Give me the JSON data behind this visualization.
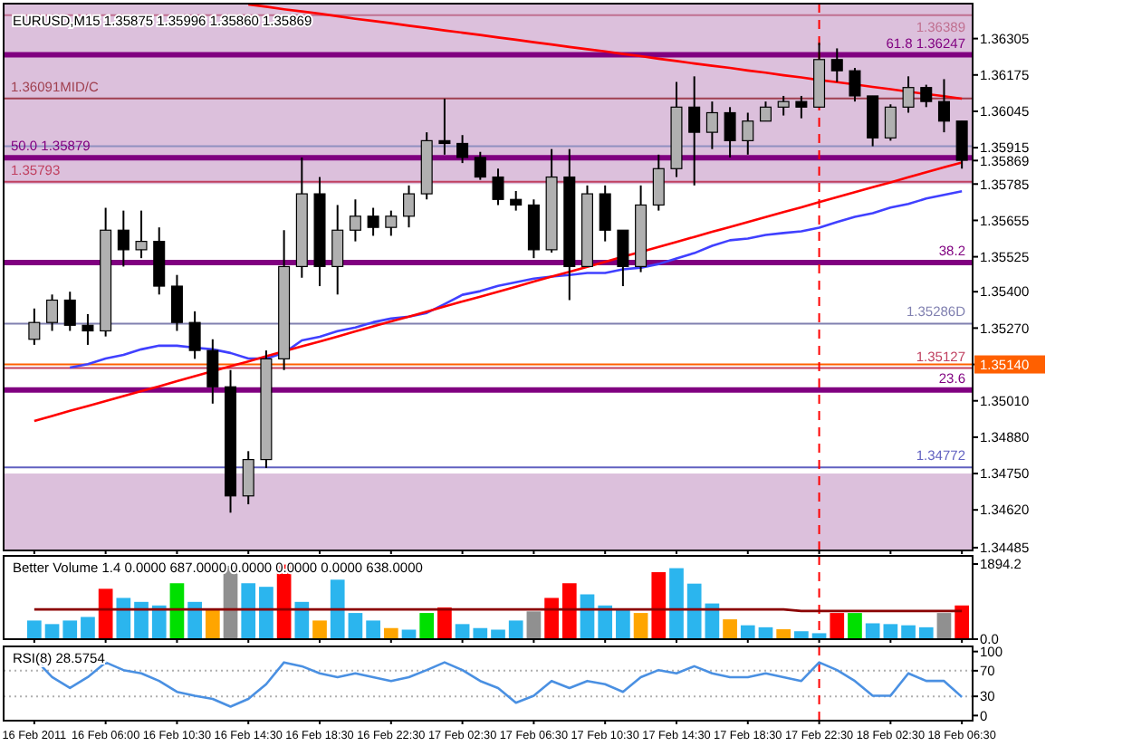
{
  "chart_data": [
    {
      "type": "candlestick",
      "title": "EURUSD,M15  1.35875 1.35996 1.35860 1.35869",
      "categories": [
        "16 Feb 2011",
        null,
        null,
        null,
        "16 Feb 06:00",
        null,
        null,
        null,
        "16 Feb 10:30",
        null,
        null,
        null,
        "16 Feb 14:30",
        null,
        null,
        null,
        "16 Feb 18:30",
        null,
        null,
        null,
        "16 Feb 22:30",
        null,
        null,
        null,
        "17 Feb 02:30",
        null,
        null,
        null,
        "17 Feb 06:30",
        null,
        null,
        null,
        "17 Feb 10:30",
        null,
        null,
        null,
        "17 Feb 14:30",
        null,
        null,
        null,
        "17 Feb 18:30",
        null,
        null,
        null,
        "17 Feb 22:30",
        null,
        null,
        null,
        "18 Feb 02:30",
        null,
        null,
        null,
        "18 Feb 06:30"
      ],
      "ohlc": [
        [
          1.3523,
          1.3534,
          1.3521,
          1.3529
        ],
        [
          1.3529,
          1.3539,
          1.3526,
          1.3537
        ],
        [
          1.3537,
          1.354,
          1.3526,
          1.3528
        ],
        [
          1.3528,
          1.3532,
          1.3521,
          1.3526
        ],
        [
          1.3526,
          1.357,
          1.3524,
          1.3562
        ],
        [
          1.3562,
          1.3569,
          1.3549,
          1.3555
        ],
        [
          1.3555,
          1.3569,
          1.3552,
          1.3558
        ],
        [
          1.3558,
          1.3563,
          1.3539,
          1.3542
        ],
        [
          1.3542,
          1.3546,
          1.3526,
          1.3529
        ],
        [
          1.3529,
          1.3533,
          1.3516,
          1.3519
        ],
        [
          1.3519,
          1.3523,
          1.35,
          1.3506
        ],
        [
          1.3506,
          1.3512,
          1.3461,
          1.3467
        ],
        [
          1.3467,
          1.3483,
          1.3464,
          1.348
        ],
        [
          1.348,
          1.3519,
          1.3477,
          1.3516
        ],
        [
          1.3516,
          1.3562,
          1.3512,
          1.3549
        ],
        [
          1.3549,
          1.3588,
          1.3545,
          1.3575
        ],
        [
          1.3575,
          1.3581,
          1.3542,
          1.3549
        ],
        [
          1.3549,
          1.3571,
          1.3539,
          1.3562
        ],
        [
          1.3562,
          1.3573,
          1.3558,
          1.3567
        ],
        [
          1.3567,
          1.357,
          1.356,
          1.3563
        ],
        [
          1.3563,
          1.3569,
          1.356,
          1.3567
        ],
        [
          1.3567,
          1.3578,
          1.3563,
          1.3575
        ],
        [
          1.3575,
          1.3597,
          1.3573,
          1.3594
        ],
        [
          1.3594,
          1.3609,
          1.3589,
          1.3593
        ],
        [
          1.3593,
          1.3596,
          1.3586,
          1.3588
        ],
        [
          1.3588,
          1.359,
          1.358,
          1.3581
        ],
        [
          1.3581,
          1.3584,
          1.3571,
          1.3573
        ],
        [
          1.3573,
          1.3576,
          1.3569,
          1.3571
        ],
        [
          1.3571,
          1.3573,
          1.3552,
          1.3555
        ],
        [
          1.3555,
          1.3591,
          1.3554,
          1.3581
        ],
        [
          1.3581,
          1.3591,
          1.3537,
          1.3549
        ],
        [
          1.3549,
          1.3578,
          1.3549,
          1.3575
        ],
        [
          1.3575,
          1.3578,
          1.3558,
          1.3562
        ],
        [
          1.3562,
          1.3562,
          1.3542,
          1.3549
        ],
        [
          1.3549,
          1.3578,
          1.3547,
          1.3571
        ],
        [
          1.3571,
          1.3589,
          1.3569,
          1.3584
        ],
        [
          1.3584,
          1.3615,
          1.3581,
          1.3606
        ],
        [
          1.3606,
          1.3617,
          1.3578,
          1.3597
        ],
        [
          1.3597,
          1.3608,
          1.3591,
          1.3604
        ],
        [
          1.3604,
          1.3606,
          1.3588,
          1.3594
        ],
        [
          1.3594,
          1.3604,
          1.3589,
          1.3601
        ],
        [
          1.3601,
          1.3608,
          1.3601,
          1.3606
        ],
        [
          1.3606,
          1.361,
          1.3603,
          1.3608
        ],
        [
          1.3608,
          1.361,
          1.3602,
          1.3606
        ],
        [
          1.3606,
          1.3629,
          1.3606,
          1.3623
        ],
        [
          1.3623,
          1.3627,
          1.3615,
          1.3619
        ],
        [
          1.3619,
          1.362,
          1.3608,
          1.361
        ],
        [
          1.361,
          1.361,
          1.3592,
          1.3595
        ],
        [
          1.3595,
          1.3607,
          1.3594,
          1.3606
        ],
        [
          1.3606,
          1.3617,
          1.3604,
          1.3613
        ],
        [
          1.3613,
          1.3614,
          1.3606,
          1.3608
        ],
        [
          1.3608,
          1.3616,
          1.3597,
          1.3601
        ],
        [
          1.3601,
          1.3601,
          1.3584,
          1.3587
        ]
      ],
      "series": [
        {
          "type": "line",
          "color": "#4040ff",
          "values": [
            null,
            null,
            1.35129,
            1.35141,
            1.35161,
            1.35174,
            1.35194,
            1.35207,
            1.35207,
            1.352,
            1.35194,
            1.35181,
            1.35161,
            1.35161,
            1.35181,
            1.35226,
            1.35239,
            1.35259,
            1.35272,
            1.35291,
            1.35304,
            1.35311,
            1.35324,
            1.35356,
            1.35389,
            1.35402,
            1.35421,
            1.35434,
            1.35447,
            1.35454,
            1.3546,
            1.35467,
            1.35467,
            1.3548,
            1.35486,
            1.35499,
            1.35519,
            1.35538,
            1.35564,
            1.35584,
            1.3559,
            1.35603,
            1.3561,
            1.35616,
            1.35629,
            1.35649,
            1.35668,
            1.35681,
            1.35701,
            1.35714,
            1.35733,
            1.35746,
            1.35759
          ]
        },
        {
          "type": "line",
          "color": "#ff0000",
          "values": [
            1.34938,
            1.34956,
            1.34974,
            1.34991,
            1.35009,
            1.35027,
            1.35045,
            1.35062,
            1.3508,
            1.35098,
            1.35116,
            1.35134,
            1.35151,
            1.35169,
            1.35187,
            1.35205,
            1.35222,
            1.3524,
            1.35258,
            1.35276,
            1.35294,
            1.35311,
            1.35329,
            1.35347,
            1.35365,
            1.35382,
            1.354,
            1.35418,
            1.35436,
            1.35454,
            1.35471,
            1.35489,
            1.35507,
            1.35525,
            1.35542,
            1.3556,
            1.35578,
            1.35596,
            1.35614,
            1.35631,
            1.35649,
            1.35667,
            1.35685,
            1.35702,
            1.3572,
            1.35738,
            1.35756,
            1.35774,
            1.35791,
            1.35809,
            1.35827,
            1.35845,
            1.35862
          ]
        },
        {
          "type": "line",
          "color": "#ff0000",
          "values": [
            null,
            null,
            null,
            null,
            null,
            null,
            null,
            null,
            null,
            null,
            null,
            null,
            1.36427,
            1.36419,
            1.3641,
            1.36402,
            1.36394,
            1.36385,
            1.36376,
            1.36368,
            1.3636,
            1.36351,
            1.36343,
            1.36334,
            1.36326,
            1.36318,
            1.36309,
            1.36301,
            1.36292,
            1.36284,
            1.36275,
            1.36267,
            1.36259,
            1.3625,
            1.36242,
            1.36233,
            1.36225,
            1.36216,
            1.36208,
            1.362,
            1.36191,
            1.36183,
            1.36174,
            1.36166,
            1.36157,
            1.36149,
            1.36141,
            1.36132,
            1.36124,
            1.36115,
            1.36107,
            1.36099,
            1.3609
          ]
        }
      ],
      "ylim": [
        1.34475,
        1.3643
      ],
      "yticks": [
        1.36305,
        1.36175,
        1.36045,
        1.35915,
        1.35869,
        1.35785,
        1.35655,
        1.35525,
        {
          "value": 1.354,
          "label": "1.35400"
        },
        {
          "value": 1.3527,
          "label": "1.35270"
        },
        {
          "value": 1.3514,
          "label": "1.35140"
        },
        {
          "value": 1.3501,
          "label": "1.35010"
        },
        {
          "value": 1.3488,
          "label": "1.34880"
        },
        {
          "value": 1.3475,
          "label": "1.34750"
        },
        {
          "value": 1.3462,
          "label": "1.34620"
        },
        1.34485
      ],
      "bands": [
        {
          "axis": "y",
          "from": 1.35785,
          "to": 1.3643,
          "color": "#dcc0dc"
        },
        {
          "axis": "y",
          "from": 1.34475,
          "to": 1.3475,
          "color": "#dcc0dc"
        }
      ],
      "ref_lines": [
        {
          "axis": "y",
          "value": 1.36389,
          "label": "1.36389",
          "color": "#c07090"
        },
        {
          "axis": "y",
          "value": 1.36247,
          "label": "61.8 1.36247",
          "color": "#800080"
        },
        {
          "axis": "y",
          "value": 1.36091,
          "label": "1.36091MID/C",
          "color": "#a04050"
        },
        {
          "axis": "y",
          "value": 1.3592,
          "color": "#9090c0"
        },
        {
          "axis": "y",
          "value": 1.35879,
          "label": "50.0 1.35879",
          "color": "#800080"
        },
        {
          "axis": "y",
          "value": 1.35793,
          "label": "1.35793",
          "color": "#c04060"
        },
        {
          "axis": "y",
          "value": 1.35504,
          "color": "#800080"
        },
        {
          "axis": "y",
          "value": 1.35286,
          "label": "1.35286D",
          "color": "#8080b0"
        },
        {
          "axis": "y",
          "value": 1.3514,
          "color": "#ff6000"
        },
        {
          "axis": "y",
          "value": 1.35127,
          "label": "1.35127",
          "color": "#c04060"
        },
        {
          "axis": "y",
          "value": 1.35049,
          "color": "#800080"
        },
        {
          "axis": "y",
          "value": 1.34772,
          "label": "1.34772",
          "color": "#6060c0"
        },
        {
          "axis": "x",
          "value": "17 Feb 22:30",
          "color": "#ff0000",
          "line_style": "dashed"
        }
      ],
      "annotations": [
        {
          "text": "38.2",
          "y": 1.35504
        },
        {
          "text": "23.6",
          "y": 1.35049
        }
      ],
      "tick_labels": "y"
    },
    {
      "type": "bar",
      "title": "Better Volume 1.4 0.0000 687.0000 0.0000 0.0000 0.0000 638.0000",
      "categories": [
        "16 Feb 2011",
        null,
        null,
        null,
        "16 Feb 06:00",
        null,
        null,
        null,
        "16 Feb 10:30",
        null,
        null,
        null,
        "16 Feb 14:30",
        null,
        null,
        null,
        "16 Feb 18:30",
        null,
        null,
        null,
        "16 Feb 22:30",
        null,
        null,
        null,
        "17 Feb 02:30",
        null,
        null,
        null,
        "17 Feb 06:30",
        null,
        null,
        null,
        "17 Feb 10:30",
        null,
        null,
        null,
        "17 Feb 14:30",
        null,
        null,
        null,
        "17 Feb 18:30",
        null,
        null,
        null,
        "17 Feb 22:30",
        null,
        null,
        null,
        "18 Feb 02:30",
        null,
        null,
        null,
        "18 Feb 06:30"
      ],
      "series": [
        {
          "type": "bar",
          "values": [
            470,
            380,
            470,
            560,
            1270,
            1040,
            940,
            850,
            1410,
            940,
            750,
            1850,
            1410,
            1320,
            1880,
            940,
            470,
            1500,
            660,
            470,
            280,
            240,
            660,
            800,
            380,
            280,
            240,
            470,
            700,
            1040,
            1410,
            1130,
            850,
            750,
            660,
            1690,
            1790,
            1400,
            900,
            500,
            350,
            300,
            250,
            200,
            150,
            660,
            660,
            400,
            380,
            350,
            300,
            660,
            850
          ],
          "colors": [
            "#2bb5ee",
            "#2bb5ee",
            "#2bb5ee",
            "#2bb5ee",
            "#ff0000",
            "#2bb5ee",
            "#2bb5ee",
            "#2bb5ee",
            "#00e000",
            "#2bb5ee",
            "#ffa500",
            "#909090",
            "#2bb5ee",
            "#2bb5ee",
            "#ff0000",
            "#2bb5ee",
            "#ffa500",
            "#2bb5ee",
            "#2bb5ee",
            "#2bb5ee",
            "#ffa500",
            "#2bb5ee",
            "#00e000",
            "#ff0000",
            "#2bb5ee",
            "#2bb5ee",
            "#2bb5ee",
            "#2bb5ee",
            "#909090",
            "#ff0000",
            "#ff0000",
            "#2bb5ee",
            "#2bb5ee",
            "#2bb5ee",
            "#ffa500",
            "#ff0000",
            "#2bb5ee",
            "#2bb5ee",
            "#2bb5ee",
            "#ffa500",
            "#2bb5ee",
            "#2bb5ee",
            "#ffa500",
            "#2bb5ee",
            "#2bb5ee",
            "#ff0000",
            "#00e000",
            "#2bb5ee",
            "#2bb5ee",
            "#2bb5ee",
            "#2bb5ee",
            "#909090",
            "#ff0000"
          ]
        },
        {
          "type": "line",
          "color": "#8b0000",
          "values": [
            750,
            750,
            750,
            750,
            750,
            750,
            750,
            750,
            750,
            750,
            750,
            750,
            750,
            750,
            750,
            750,
            750,
            750,
            750,
            750,
            750,
            750,
            750,
            750,
            750,
            750,
            750,
            750,
            750,
            750,
            750,
            750,
            750,
            750,
            750,
            750,
            750,
            750,
            750,
            750,
            750,
            750,
            750,
            710,
            710,
            710,
            710,
            710,
            710,
            710,
            710,
            710,
            710
          ]
        }
      ],
      "ylim": [
        0,
        2100
      ],
      "yticks": [
        1894.2,
        {
          "value": 0,
          "label": "0.0"
        }
      ],
      "ref_lines": [
        {
          "axis": "x",
          "value": "17 Feb 22:30",
          "color": "#ff0000",
          "line_style": "dashed"
        }
      ],
      "tick_labels": "y"
    },
    {
      "type": "line",
      "title": "RSI(8) 28.5754",
      "categories": [
        "16 Feb 2011",
        null,
        null,
        null,
        "16 Feb 06:00",
        null,
        null,
        null,
        "16 Feb 10:30",
        null,
        null,
        null,
        "16 Feb 14:30",
        null,
        null,
        null,
        "16 Feb 18:30",
        null,
        null,
        null,
        "16 Feb 22:30",
        null,
        null,
        null,
        "17 Feb 02:30",
        null,
        null,
        null,
        "17 Feb 06:30",
        null,
        null,
        null,
        "17 Feb 10:30",
        null,
        null,
        null,
        "17 Feb 14:30",
        null,
        null,
        null,
        "17 Feb 18:30",
        null,
        null,
        null,
        "17 Feb 22:30",
        null,
        null,
        null,
        "18 Feb 02:30",
        null,
        null,
        null,
        "18 Feb 06:30"
      ],
      "series": [
        {
          "color": "#4a90e2",
          "values": [
            89,
            60,
            43,
            60,
            83,
            71,
            66,
            54,
            37,
            31,
            26,
            14,
            26,
            49,
            83,
            77,
            66,
            60,
            66,
            60,
            54,
            60,
            71,
            83,
            71,
            54,
            43,
            20,
            31,
            54,
            43,
            54,
            49,
            37,
            60,
            71,
            66,
            77,
            66,
            60,
            60,
            66,
            60,
            54,
            83,
            71,
            54,
            31,
            31,
            66,
            54,
            54,
            29
          ]
        }
      ],
      "ylim": [
        -8,
        108
      ],
      "yticks": [
        100,
        70,
        30,
        0
      ],
      "ref_lines": [
        {
          "axis": "y",
          "value": 70,
          "color": "#b0b0b0",
          "line_style": "dotted"
        },
        {
          "axis": "y",
          "value": 30,
          "color": "#b0b0b0",
          "line_style": "dotted"
        },
        {
          "axis": "x",
          "value": "17 Feb 22:30",
          "color": "#ff0000",
          "line_style": "dashed"
        }
      ]
    }
  ]
}
